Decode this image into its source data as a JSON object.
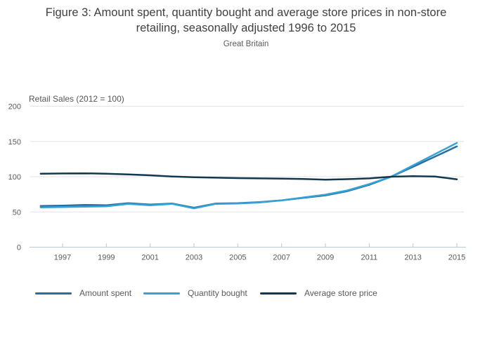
{
  "chart_data": {
    "type": "line",
    "title": "Figure 3: Amount spent, quantity bought and average store prices in non-store retailing, seasonally adjusted 1996 to 2015",
    "subtitle": "Great Britain",
    "y_axis": {
      "title": "Retail Sales (2012 = 100)",
      "min": 0,
      "max": 200,
      "ticks": [
        0,
        50,
        100,
        150,
        200
      ],
      "gridlines": true
    },
    "x_axis": {
      "min": 1996,
      "max": 2015,
      "tick_labels": [
        1997,
        1999,
        2001,
        2003,
        2005,
        2007,
        2009,
        2011,
        2013,
        2015
      ]
    },
    "x": [
      1996,
      1997,
      1998,
      1999,
      2000,
      2001,
      2002,
      2003,
      2004,
      2005,
      2006,
      2007,
      2008,
      2009,
      2010,
      2011,
      2012,
      2013,
      2014,
      2015
    ],
    "series": [
      {
        "name": "Amount spent",
        "color": "#2d6d9e",
        "values": [
          58.5,
          59.0,
          60.0,
          59.5,
          62.5,
          60.5,
          62.0,
          56.0,
          62.0,
          62.5,
          64.0,
          66.5,
          70.0,
          73.5,
          79.5,
          88.5,
          100.0,
          114.0,
          128.5,
          143.0
        ]
      },
      {
        "name": "Quantity bought",
        "color": "#33a2d9",
        "values": [
          56.5,
          57.0,
          57.5,
          58.0,
          61.5,
          59.5,
          61.5,
          55.0,
          61.5,
          62.0,
          63.5,
          66.5,
          70.5,
          74.5,
          80.5,
          89.5,
          100.0,
          116.0,
          132.0,
          148.0
        ]
      },
      {
        "name": "Average store price",
        "color": "#11384f",
        "values": [
          104.3,
          104.6,
          104.8,
          104.3,
          103.2,
          102.0,
          100.3,
          99.2,
          98.6,
          98.0,
          97.6,
          97.3,
          96.8,
          95.7,
          96.5,
          97.6,
          100.0,
          100.8,
          100.3,
          96.3
        ]
      }
    ],
    "legend_position": "bottom",
    "style": {
      "gridline_color": "#e3e3e3",
      "axis_color": "#b9c9d5",
      "background": "#ffffff"
    }
  }
}
